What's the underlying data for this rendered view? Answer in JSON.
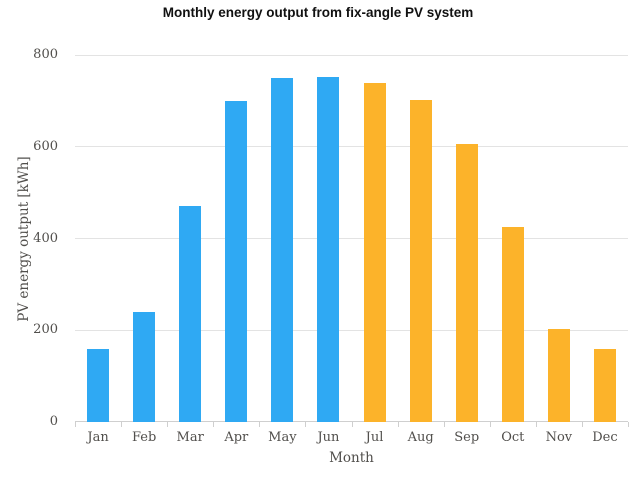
{
  "chart_data": {
    "type": "bar",
    "title": "Monthly energy output from fix-angle PV system",
    "xlabel": "Month",
    "ylabel": "PV energy output [kWh]",
    "categories": [
      "Jan",
      "Feb",
      "Mar",
      "Apr",
      "May",
      "Jun",
      "Jul",
      "Aug",
      "Sep",
      "Oct",
      "Nov",
      "Dec"
    ],
    "values": [
      160,
      240,
      471,
      700,
      749,
      753,
      738,
      701,
      607,
      425,
      202,
      160
    ],
    "bar_colors": [
      "#2fa9f3",
      "#2fa9f3",
      "#2fa9f3",
      "#2fa9f3",
      "#2fa9f3",
      "#2fa9f3",
      "#fcb32a",
      "#fcb32a",
      "#fcb32a",
      "#fcb32a",
      "#fcb32a",
      "#fcb32a"
    ],
    "ylim": [
      0,
      800
    ],
    "yticks": [
      0,
      200,
      400,
      600,
      800
    ],
    "grid": true,
    "legend": "none",
    "colors": {
      "bar_blue": "#2fa9f3",
      "bar_orange": "#fcb32a",
      "gridline": "#e3e3e3",
      "axis_line": "#cfcfcf",
      "tick_label": "#514f4c",
      "title": "#111111",
      "background": "#ffffff"
    }
  }
}
